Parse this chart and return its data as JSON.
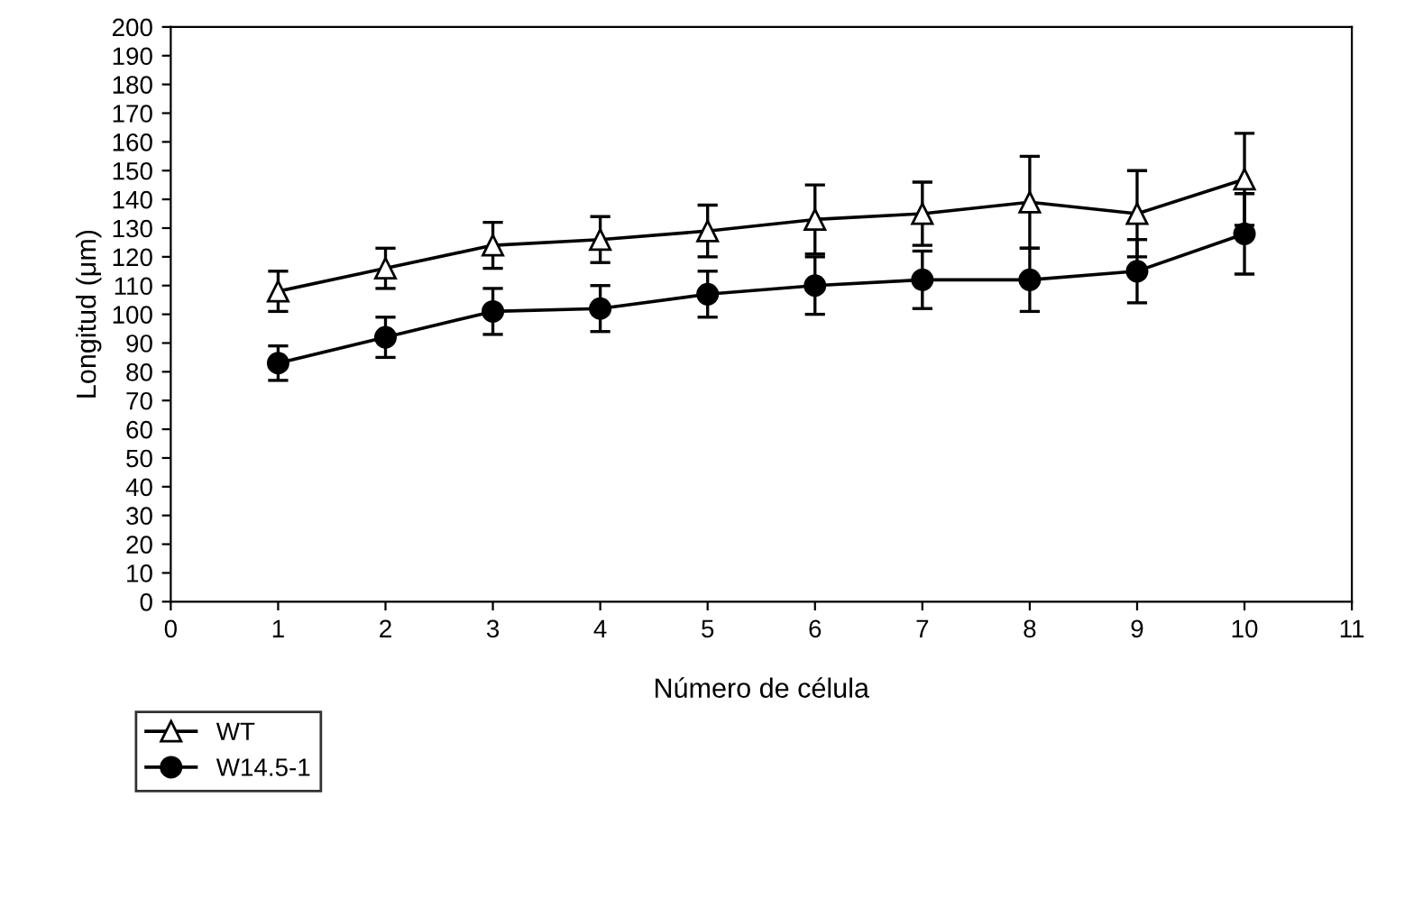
{
  "chart_data": {
    "type": "line",
    "xlabel": "Número de célula",
    "ylabel": "Longitud (μm)",
    "x": [
      1,
      2,
      3,
      4,
      5,
      6,
      7,
      8,
      9,
      10
    ],
    "xlim": [
      0,
      11
    ],
    "xticks": [
      0,
      1,
      2,
      3,
      4,
      5,
      6,
      7,
      8,
      9,
      10,
      11
    ],
    "ylim": [
      0,
      200
    ],
    "yticks": [
      0,
      10,
      20,
      30,
      40,
      50,
      60,
      70,
      80,
      90,
      100,
      110,
      120,
      130,
      140,
      150,
      160,
      170,
      180,
      190,
      200
    ],
    "grid": false,
    "legend": "bottom left",
    "series": [
      {
        "name": "WT",
        "color": "#000000",
        "marker": "triangle",
        "values": [
          108,
          116,
          124,
          126,
          129,
          133,
          135,
          139,
          135,
          147
        ],
        "errors": [
          7,
          7,
          8,
          8,
          9,
          12,
          11,
          16,
          15,
          16
        ]
      },
      {
        "name": "W14.5-1",
        "color": "#000000",
        "marker": "circle",
        "values": [
          83,
          92,
          101,
          102,
          107,
          110,
          112,
          112,
          115,
          128
        ],
        "errors": [
          6,
          7,
          8,
          8,
          8,
          10,
          10,
          11,
          11,
          14
        ]
      }
    ]
  }
}
